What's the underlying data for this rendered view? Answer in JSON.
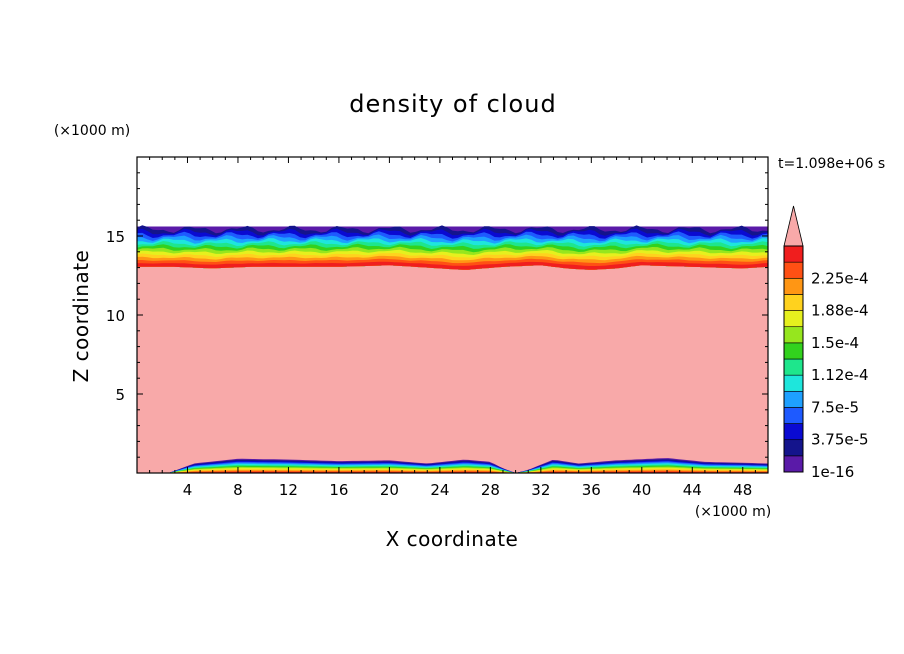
{
  "chart_data": {
    "type": "heatmap",
    "title": "density of cloud",
    "xlabel": "X coordinate",
    "ylabel": "Z coordinate",
    "x_unit": "(×1000 m)",
    "y_unit": "(×1000 m)",
    "time_label": "t=1.098e+06 s",
    "xlim": [
      0,
      50
    ],
    "ylim": [
      0,
      20
    ],
    "x_ticks": [
      4,
      8,
      12,
      16,
      20,
      24,
      28,
      32,
      36,
      40,
      44,
      48
    ],
    "y_ticks": [
      5,
      10,
      15
    ],
    "grid": false,
    "fields": {
      "cloud_top_km": 15.6,
      "top_gradient_edge_km": [
        [
          0,
          13.1
        ],
        [
          3,
          13.1
        ],
        [
          6,
          13.0
        ],
        [
          9,
          13.1
        ],
        [
          12,
          13.1
        ],
        [
          16,
          13.1
        ],
        [
          20,
          13.2
        ],
        [
          24,
          13.0
        ],
        [
          26,
          12.9
        ],
        [
          29,
          13.1
        ],
        [
          32,
          13.2
        ],
        [
          34,
          13.0
        ],
        [
          36,
          12.9
        ],
        [
          38,
          13.0
        ],
        [
          40,
          13.2
        ],
        [
          44,
          13.1
        ],
        [
          48,
          13.0
        ],
        [
          50,
          13.1
        ]
      ],
      "bottom_gradient_edge_km": [
        [
          0,
          0.0
        ],
        [
          2.5,
          0.0
        ],
        [
          3.5,
          0.3
        ],
        [
          4.5,
          0.6
        ],
        [
          8,
          0.9
        ],
        [
          12,
          0.85
        ],
        [
          16,
          0.75
        ],
        [
          20,
          0.8
        ],
        [
          23,
          0.6
        ],
        [
          26,
          0.85
        ],
        [
          28,
          0.7
        ],
        [
          29,
          0.3
        ],
        [
          30,
          0.0
        ],
        [
          31,
          0.2
        ],
        [
          33,
          0.85
        ],
        [
          35,
          0.6
        ],
        [
          38,
          0.8
        ],
        [
          42,
          0.95
        ],
        [
          45,
          0.7
        ],
        [
          48,
          0.65
        ],
        [
          50,
          0.6
        ]
      ]
    },
    "colorbar": {
      "labels": [
        "1e-16",
        "3.75e-5",
        "7.5e-5",
        "1.12e-4",
        "1.5e-4",
        "1.88e-4",
        "2.25e-4"
      ],
      "levels": [
        1e-16,
        1.875e-05,
        3.75e-05,
        5.625e-05,
        7.5e-05,
        9.375e-05,
        0.0001125,
        0.00013125,
        0.00015,
        0.00016875,
        0.0001875,
        0.00020625,
        0.000225,
        0.00024375
      ],
      "colors": [
        "#5a1aa8",
        "#14148c",
        "#0a0ad2",
        "#1e5aff",
        "#1ea0ff",
        "#1ee6dc",
        "#1ee68c",
        "#32d21e",
        "#96e61e",
        "#e6f01e",
        "#ffd21e",
        "#ff9614",
        "#ff5014",
        "#f01e1e"
      ],
      "extend_color": "#f8a9a9"
    }
  }
}
